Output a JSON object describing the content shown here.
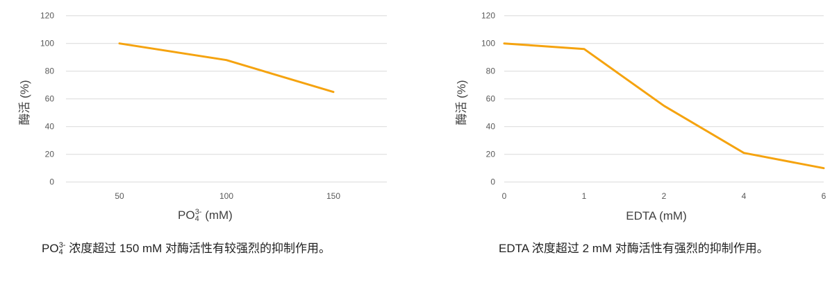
{
  "chart_data": [
    {
      "type": "line",
      "categories": [
        "50",
        "100",
        "150"
      ],
      "series": [
        {
          "values": [
            100,
            88,
            65
          ]
        }
      ],
      "xlabel": {
        "base": "PO",
        "sub": "4",
        "sup": "3-",
        "rest": " (mM)"
      },
      "ylabel": "酶活 (%)",
      "ylim": [
        0,
        120
      ],
      "yticks": [
        0,
        20,
        40,
        60,
        80,
        100,
        120
      ],
      "grid": true,
      "line_color": "#F5A30F",
      "caption": {
        "base": "PO",
        "sub": "4",
        "sup": "3-",
        "rest": " 浓度超过 150 mM 对酶活性有较强烈的抑制作用。"
      }
    },
    {
      "type": "line",
      "categories": [
        "0",
        "1",
        "2",
        "4",
        "6"
      ],
      "series": [
        {
          "values": [
            100,
            96,
            55,
            21,
            10
          ]
        }
      ],
      "xlabel": "EDTA (mM)",
      "ylabel": "酶活 (%)",
      "ylim": [
        0,
        120
      ],
      "yticks": [
        0,
        20,
        40,
        60,
        80,
        100,
        120
      ],
      "grid": true,
      "line_color": "#F5A30F",
      "caption": "EDTA 浓度超过 2 mM 对酶活性有强烈的抑制作用。"
    }
  ]
}
